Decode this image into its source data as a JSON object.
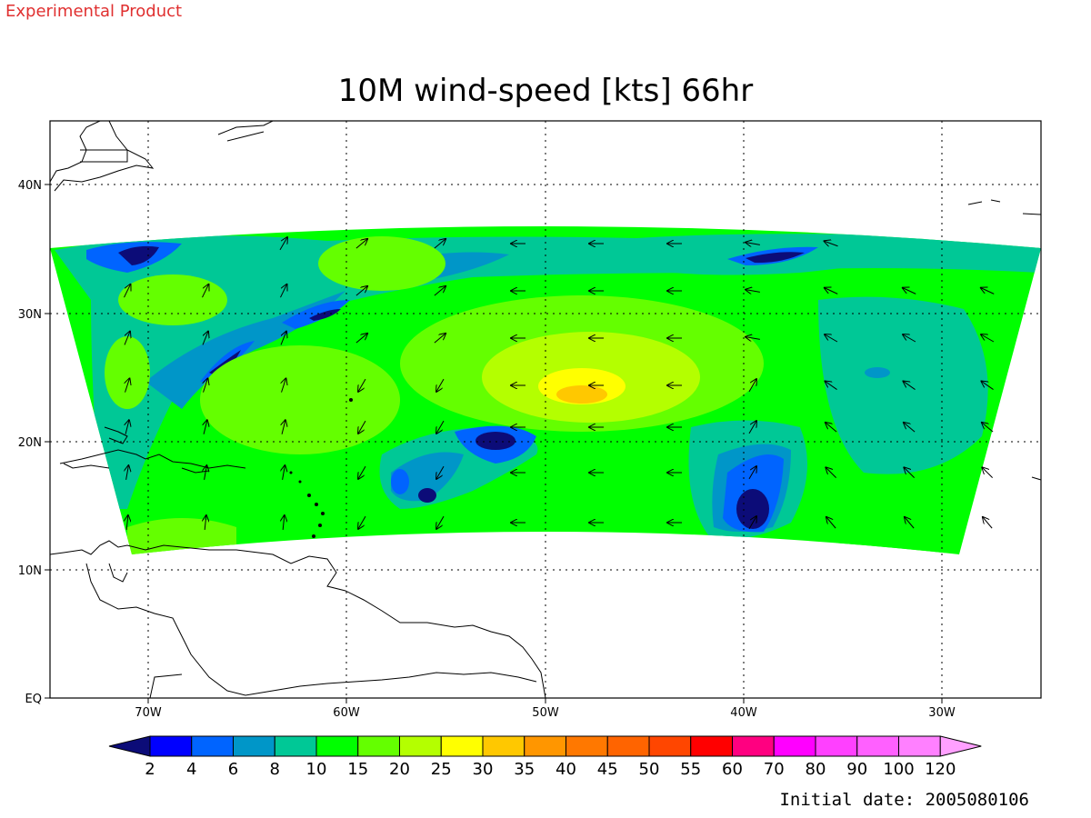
{
  "banner": "Experimental Product",
  "title": "10M wind-speed [kts] 66hr",
  "initial_date": "Initial date: 2005080106",
  "map": {
    "lon_ticks": [
      "70W",
      "60W",
      "50W",
      "40W",
      "30W"
    ],
    "lat_ticks": [
      "40N",
      "30N",
      "20N",
      "10N",
      "EQ"
    ],
    "lon_range": [
      -75,
      -25
    ],
    "lat_range": [
      0,
      45
    ],
    "grid": "dotted"
  },
  "colorbar": {
    "labels": [
      "2",
      "4",
      "6",
      "8",
      "10",
      "15",
      "20",
      "25",
      "30",
      "35",
      "40",
      "45",
      "50",
      "55",
      "60",
      "70",
      "80",
      "90",
      "100",
      "120"
    ],
    "colors": [
      "#0c0c78",
      "#0000ff",
      "#0064ff",
      "#0096c8",
      "#00c896",
      "#00ff00",
      "#64ff00",
      "#b4ff00",
      "#ffff00",
      "#ffc800",
      "#ff9600",
      "#ff7800",
      "#ff6400",
      "#ff4600",
      "#ff0000",
      "#ff0080",
      "#ff00ff",
      "#ff40ff",
      "#ff60ff",
      "#ff80ff",
      "#ffa0ff"
    ]
  }
}
